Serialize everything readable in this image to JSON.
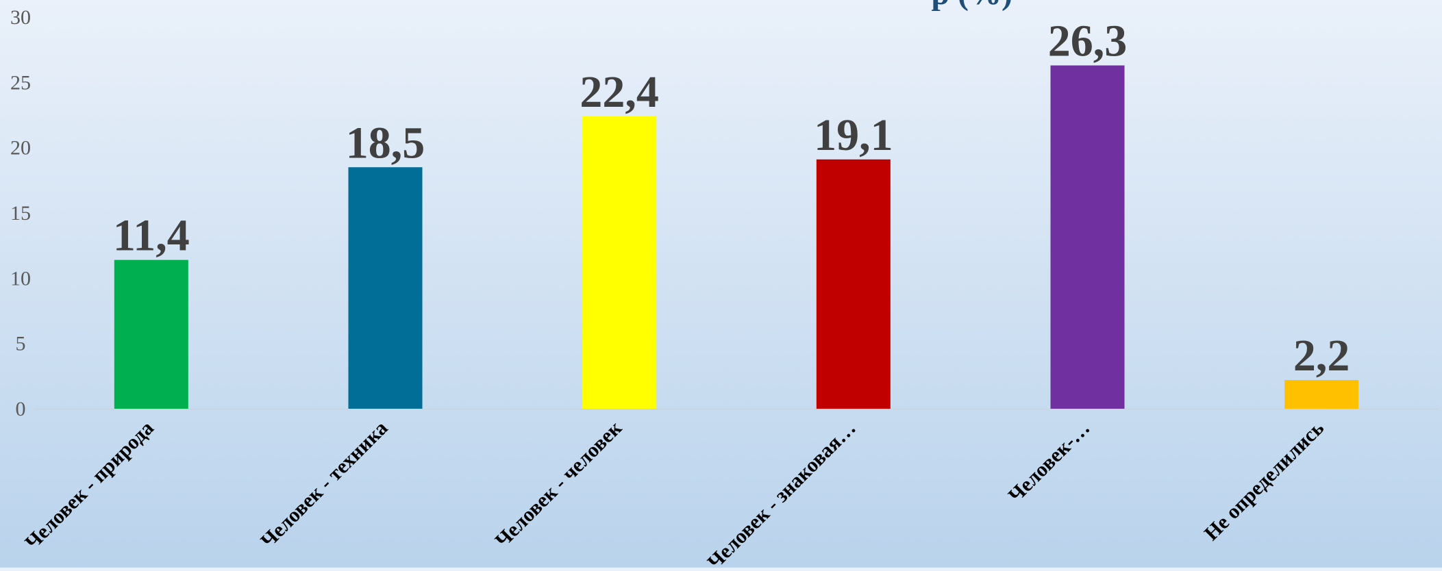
{
  "chart_data": {
    "type": "bar",
    "title_fragment": "р (%)",
    "categories": [
      "Человек - природа",
      "Человек - техника",
      "Человек - человек",
      "Человек - знаковая…",
      "Человек-…",
      "Не определились"
    ],
    "values": [
      11.4,
      18.5,
      22.4,
      19.1,
      26.3,
      2.2
    ],
    "value_labels": [
      "11,4",
      "18,5",
      "22,4",
      "19,1",
      "26,3",
      "2,2"
    ],
    "colors": [
      "#00b050",
      "#006e96",
      "#ffff00",
      "#c00000",
      "#7030a0",
      "#ffc000"
    ],
    "ylim": [
      0,
      30
    ],
    "yticks": [
      0,
      5,
      10,
      15,
      20,
      25,
      30
    ],
    "grid": false,
    "legend": "none"
  }
}
